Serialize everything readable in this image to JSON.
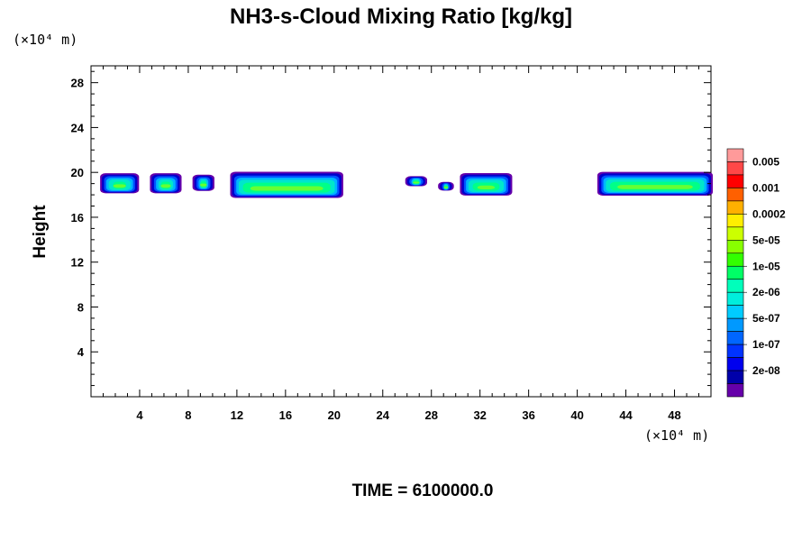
{
  "chart_data": {
    "type": "contour",
    "title": "NH3-s-Cloud Mixing Ratio [kg/kg]",
    "x_unit": "(×10⁴ m)",
    "y_unit": "(×10⁴ m)",
    "ylabel": "Height",
    "xlabel": "",
    "xlim": [
      0,
      51
    ],
    "ylim": [
      0,
      29.5
    ],
    "x_ticks": [
      4,
      8,
      12,
      16,
      20,
      24,
      28,
      32,
      36,
      40,
      44,
      48
    ],
    "y_ticks": [
      4,
      8,
      12,
      16,
      20,
      24,
      28
    ],
    "footer": "TIME = 6100000.0",
    "colorbar": {
      "labels": [
        "0.005",
        "0.001",
        "0.0002",
        "5e-05",
        "1e-05",
        "2e-06",
        "5e-07",
        "1e-07",
        "2e-08"
      ],
      "colors": [
        "#ff9a9a",
        "#ff4848",
        "#ff0000",
        "#ff6000",
        "#ffb000",
        "#ffee00",
        "#ccff00",
        "#88ff00",
        "#33ff00",
        "#00ff66",
        "#00ffbb",
        "#00eedd",
        "#00ccff",
        "#0099ff",
        "#0066ff",
        "#0033ff",
        "#0000ee",
        "#0000aa",
        "#6600aa"
      ]
    },
    "clouds": [
      {
        "x0": 0.9,
        "x1": 3.8,
        "bottom": 18.2,
        "top": 19.8
      },
      {
        "x0": 5.0,
        "x1": 7.3,
        "bottom": 18.2,
        "top": 19.8
      },
      {
        "x0": 8.5,
        "x1": 10.0,
        "bottom": 18.4,
        "top": 19.7
      },
      {
        "x0": 11.6,
        "x1": 20.6,
        "bottom": 17.8,
        "top": 19.9
      },
      {
        "x0": 26.0,
        "x1": 27.5,
        "bottom": 18.8,
        "top": 19.6
      },
      {
        "x0": 28.7,
        "x1": 29.7,
        "bottom": 18.4,
        "top": 19.1
      },
      {
        "x0": 30.5,
        "x1": 34.5,
        "bottom": 18.0,
        "top": 19.8
      },
      {
        "x0": 41.8,
        "x1": 51.0,
        "bottom": 18.0,
        "top": 19.9
      }
    ]
  }
}
